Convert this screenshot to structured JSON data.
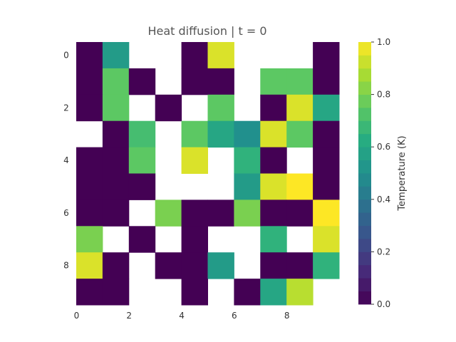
{
  "chart_data": {
    "type": "heatmap",
    "title": "Heat diffusion | t = 0",
    "rows": 10,
    "cols": 10,
    "x_ticks": [
      0,
      2,
      4,
      6,
      8
    ],
    "y_ticks": [
      0,
      2,
      4,
      6,
      8
    ],
    "colorbar": {
      "label": "Temperature (K)",
      "range": [
        0.0,
        1.0
      ],
      "ticks": [
        "0.0",
        "0.2",
        "0.4",
        "0.6",
        "0.8",
        "1.0"
      ],
      "colormap": "viridis",
      "levels": 20
    },
    "values": [
      [
        0.0,
        0.55,
        null,
        null,
        0.0,
        0.95,
        null,
        null,
        null,
        0.0
      ],
      [
        0.0,
        0.75,
        0.0,
        null,
        0.0,
        0.0,
        null,
        0.75,
        0.75,
        0.0
      ],
      [
        0.0,
        0.75,
        null,
        0.0,
        null,
        0.75,
        null,
        0.0,
        0.95,
        0.6
      ],
      [
        null,
        0.0,
        0.7,
        null,
        0.75,
        0.6,
        0.5,
        0.95,
        0.75,
        0.0
      ],
      [
        0.0,
        0.0,
        0.75,
        null,
        0.95,
        null,
        0.65,
        0.0,
        null,
        0.0
      ],
      [
        0.0,
        0.0,
        0.0,
        null,
        null,
        null,
        0.55,
        0.95,
        1.0,
        0.0
      ],
      [
        0.0,
        0.0,
        null,
        0.8,
        0.0,
        0.0,
        0.8,
        0.0,
        0.0,
        1.0
      ],
      [
        0.8,
        null,
        0.0,
        null,
        0.0,
        null,
        null,
        0.65,
        null,
        0.95
      ],
      [
        0.95,
        0.0,
        null,
        0.0,
        0.0,
        0.55,
        null,
        0.0,
        0.0,
        0.65
      ],
      [
        0.0,
        0.0,
        null,
        null,
        0.0,
        null,
        0.0,
        0.6,
        0.9,
        null
      ]
    ]
  }
}
